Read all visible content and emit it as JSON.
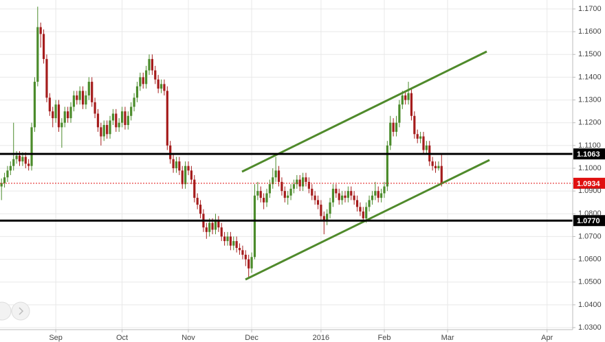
{
  "chart_data": {
    "type": "candlestick",
    "categories": [
      null,
      null,
      null,
      null,
      null,
      null,
      null,
      null,
      null,
      null,
      null,
      null,
      null,
      null,
      null,
      null,
      null,
      null,
      "Sep",
      null,
      null,
      null,
      null,
      null,
      null,
      null,
      null,
      null,
      null,
      null,
      null,
      null,
      null,
      null,
      null,
      null,
      null,
      null,
      null,
      null,
      "Oct",
      null,
      null,
      null,
      null,
      null,
      null,
      null,
      null,
      null,
      null,
      null,
      null,
      null,
      null,
      null,
      null,
      null,
      null,
      null,
      null,
      null,
      "Nov",
      null,
      null,
      null,
      null,
      null,
      null,
      null,
      null,
      null,
      null,
      null,
      null,
      null,
      null,
      null,
      null,
      null,
      null,
      null,
      null,
      "Dec",
      null,
      null,
      null,
      null,
      null,
      null,
      null,
      null,
      null,
      null,
      null,
      null,
      null,
      null,
      null,
      null,
      null,
      null,
      null,
      null,
      null,
      null,
      "2016",
      null,
      null,
      null,
      null,
      null,
      null,
      null,
      null,
      null,
      null,
      null,
      null,
      null,
      null,
      null,
      null,
      null,
      null,
      null,
      null,
      "Feb",
      null,
      null,
      null,
      null,
      null,
      null,
      null,
      null,
      null,
      null,
      null,
      null,
      null,
      null,
      null,
      null,
      null,
      null,
      null,
      null,
      "Mar",
      null,
      null,
      null,
      null,
      null,
      null,
      null,
      null,
      null,
      null,
      null,
      null,
      null,
      null,
      null,
      null,
      null,
      null,
      null,
      null,
      null,
      null,
      null,
      null,
      null,
      null,
      null,
      null,
      null,
      null,
      null,
      null,
      "Apr",
      null,
      null,
      null,
      null,
      null,
      null,
      null,
      null
    ],
    "open": [
      1.092,
      1.0935,
      1.096,
      1.099,
      1.101,
      1.104,
      1.1055,
      1.103,
      1.105,
      1.102,
      1.101,
      1.118,
      1.138,
      1.162,
      1.159,
      1.148,
      1.131,
      1.125,
      1.122,
      1.128,
      1.118,
      1.12,
      1.125,
      1.122,
      1.127,
      1.132,
      1.13,
      1.134,
      1.128,
      1.132,
      1.138,
      1.129,
      1.124,
      1.118,
      1.114,
      1.119,
      1.115,
      1.121,
      1.124,
      1.118,
      1.12,
      1.125,
      1.119,
      1.123,
      1.127,
      1.131,
      1.136,
      1.14,
      1.137,
      1.143,
      1.148,
      1.143,
      1.139,
      1.135,
      1.137,
      1.134,
      1.11,
      1.104,
      1.1,
      1.103,
      1.099,
      1.093,
      1.101,
      1.099,
      1.095,
      1.087,
      1.084,
      1.08,
      1.074,
      1.072,
      1.076,
      1.073,
      1.077,
      1.074,
      1.07,
      1.068,
      1.07,
      1.066,
      1.068,
      1.065,
      1.064,
      1.062,
      1.06,
      1.056,
      1.061,
      1.088,
      1.09,
      1.087,
      1.085,
      1.089,
      1.093,
      1.096,
      1.099,
      1.094,
      1.09,
      1.087,
      1.088,
      1.091,
      1.093,
      1.095,
      1.092,
      1.096,
      1.094,
      1.091,
      1.088,
      1.086,
      1.084,
      1.079,
      1.077,
      1.08,
      1.085,
      1.091,
      1.089,
      1.086,
      1.088,
      1.087,
      1.09,
      1.088,
      1.086,
      1.083,
      1.081,
      1.078,
      1.083,
      1.086,
      1.088,
      1.09,
      1.087,
      1.089,
      1.092,
      1.11,
      1.12,
      1.116,
      1.12,
      1.128,
      1.132,
      1.13,
      1.133,
      1.123,
      1.115,
      1.113,
      1.114,
      1.108,
      1.11,
      1.103,
      1.101,
      1.1,
      1.101,
      null,
      null,
      null,
      null,
      null,
      null,
      null,
      null,
      null,
      null,
      null,
      null,
      null,
      null,
      null,
      null,
      null,
      null,
      null,
      null,
      null,
      null,
      null,
      null,
      null,
      null,
      null,
      null,
      null,
      null,
      null,
      null,
      null,
      null,
      null,
      null,
      null,
      null,
      null,
      null,
      null,
      null,
      null
    ],
    "high": [
      1.0955,
      1.098,
      1.101,
      1.103,
      1.12,
      1.1075,
      1.1075,
      1.107,
      1.107,
      1.104,
      1.12,
      1.14,
      1.171,
      1.164,
      1.161,
      1.15,
      1.133,
      1.127,
      1.13,
      1.13,
      1.122,
      1.127,
      1.127,
      1.129,
      1.134,
      1.134,
      1.136,
      1.136,
      1.134,
      1.14,
      1.14,
      1.131,
      1.126,
      1.12,
      1.121,
      1.121,
      1.123,
      1.126,
      1.126,
      1.122,
      1.127,
      1.127,
      1.125,
      1.129,
      1.133,
      1.138,
      1.142,
      1.142,
      1.145,
      1.15,
      1.15,
      1.145,
      1.141,
      1.139,
      1.139,
      1.136,
      1.112,
      1.106,
      1.105,
      1.105,
      1.101,
      1.103,
      1.103,
      1.101,
      1.097,
      1.089,
      1.086,
      1.082,
      1.076,
      1.078,
      1.078,
      1.08,
      1.079,
      1.076,
      1.072,
      1.072,
      1.072,
      1.07,
      1.07,
      1.067,
      1.066,
      1.064,
      1.062,
      1.063,
      1.093,
      1.094,
      1.092,
      1.089,
      1.091,
      1.095,
      1.1,
      1.105,
      1.101,
      1.096,
      1.092,
      1.09,
      1.093,
      1.095,
      1.097,
      1.097,
      1.098,
      1.098,
      1.096,
      1.093,
      1.09,
      1.088,
      1.086,
      1.081,
      1.082,
      1.087,
      1.093,
      1.093,
      1.091,
      1.09,
      1.09,
      1.092,
      1.092,
      1.09,
      1.088,
      1.085,
      1.083,
      1.085,
      1.088,
      1.09,
      1.094,
      1.092,
      1.091,
      1.094,
      1.112,
      1.123,
      1.122,
      1.123,
      1.13,
      1.134,
      1.134,
      1.138,
      1.135,
      1.125,
      1.117,
      1.116,
      1.116,
      1.112,
      1.112,
      1.105,
      1.103,
      1.103,
      1.106,
      null,
      null,
      null,
      null,
      null,
      null,
      null,
      null,
      null,
      null,
      null,
      null,
      null,
      null,
      null,
      null,
      null,
      null,
      null,
      null,
      null,
      null,
      null,
      null,
      null,
      null,
      null,
      null,
      null,
      null,
      null,
      null,
      null,
      null,
      null,
      null,
      null,
      null,
      null,
      null,
      null,
      null,
      null
    ],
    "low": [
      1.086,
      1.0915,
      1.094,
      1.097,
      1.099,
      1.102,
      1.101,
      1.101,
      1.1,
      1.099,
      1.099,
      1.116,
      1.136,
      1.153,
      1.146,
      1.129,
      1.123,
      1.118,
      1.12,
      1.116,
      1.109,
      1.118,
      1.12,
      1.12,
      1.125,
      1.128,
      1.128,
      1.126,
      1.126,
      1.13,
      1.127,
      1.122,
      1.116,
      1.11,
      1.112,
      1.113,
      1.113,
      1.119,
      1.116,
      1.116,
      1.118,
      1.117,
      1.117,
      1.121,
      1.125,
      1.129,
      1.134,
      1.135,
      1.135,
      1.141,
      1.141,
      1.137,
      1.133,
      1.133,
      1.132,
      1.108,
      1.102,
      1.098,
      1.098,
      1.097,
      1.091,
      1.091,
      1.097,
      1.093,
      1.085,
      1.082,
      1.078,
      1.072,
      1.069,
      1.07,
      1.071,
      1.071,
      1.072,
      1.068,
      1.066,
      1.066,
      1.064,
      1.064,
      1.063,
      1.062,
      1.06,
      1.057,
      1.052,
      1.054,
      1.06,
      1.086,
      1.085,
      1.082,
      1.083,
      1.087,
      1.091,
      1.094,
      1.092,
      1.088,
      1.085,
      1.084,
      1.086,
      1.089,
      1.091,
      1.09,
      1.09,
      1.092,
      1.089,
      1.086,
      1.084,
      1.082,
      1.077,
      1.071,
      1.075,
      1.078,
      1.083,
      1.087,
      1.084,
      1.084,
      1.085,
      1.085,
      1.086,
      1.084,
      1.081,
      1.079,
      1.076,
      1.076,
      1.081,
      1.084,
      1.086,
      1.085,
      1.085,
      1.087,
      1.09,
      1.108,
      1.114,
      1.114,
      1.118,
      1.126,
      1.128,
      1.128,
      1.121,
      1.113,
      1.111,
      1.111,
      1.106,
      1.106,
      1.101,
      1.099,
      1.098,
      1.099,
      1.092,
      null,
      null,
      null,
      null,
      null,
      null,
      null,
      null,
      null,
      null,
      null,
      null,
      null,
      null,
      null,
      null,
      null,
      null,
      null,
      null,
      null,
      null,
      null,
      null,
      null,
      null,
      null,
      null,
      null,
      null,
      null,
      null,
      null,
      null,
      null,
      null,
      null,
      null,
      null,
      null,
      null,
      null,
      null
    ],
    "close": [
      1.0935,
      1.096,
      1.099,
      1.101,
      1.104,
      1.1055,
      1.103,
      1.105,
      1.102,
      1.101,
      1.118,
      1.138,
      1.162,
      1.159,
      1.148,
      1.131,
      1.125,
      1.122,
      1.128,
      1.118,
      1.12,
      1.125,
      1.122,
      1.127,
      1.132,
      1.13,
      1.134,
      1.128,
      1.132,
      1.138,
      1.129,
      1.124,
      1.118,
      1.114,
      1.119,
      1.115,
      1.121,
      1.124,
      1.118,
      1.12,
      1.125,
      1.119,
      1.123,
      1.127,
      1.131,
      1.136,
      1.14,
      1.137,
      1.143,
      1.148,
      1.143,
      1.139,
      1.135,
      1.137,
      1.134,
      1.11,
      1.104,
      1.1,
      1.103,
      1.099,
      1.093,
      1.101,
      1.099,
      1.095,
      1.087,
      1.084,
      1.08,
      1.074,
      1.072,
      1.076,
      1.073,
      1.077,
      1.074,
      1.07,
      1.068,
      1.07,
      1.066,
      1.068,
      1.065,
      1.064,
      1.062,
      1.06,
      1.056,
      1.061,
      1.088,
      1.09,
      1.087,
      1.085,
      1.089,
      1.093,
      1.096,
      1.099,
      1.094,
      1.09,
      1.087,
      1.088,
      1.091,
      1.093,
      1.095,
      1.092,
      1.096,
      1.094,
      1.091,
      1.088,
      1.086,
      1.084,
      1.079,
      1.077,
      1.08,
      1.085,
      1.091,
      1.089,
      1.086,
      1.088,
      1.087,
      1.09,
      1.088,
      1.086,
      1.083,
      1.081,
      1.078,
      1.083,
      1.086,
      1.088,
      1.09,
      1.087,
      1.089,
      1.092,
      1.11,
      1.12,
      1.116,
      1.12,
      1.128,
      1.132,
      1.13,
      1.133,
      1.123,
      1.115,
      1.113,
      1.114,
      1.108,
      1.11,
      1.103,
      1.101,
      1.1,
      1.101,
      1.0934,
      null,
      null,
      null,
      null,
      null,
      null,
      null,
      null,
      null,
      null,
      null,
      null,
      null,
      null,
      null,
      null,
      null,
      null,
      null,
      null,
      null,
      null,
      null,
      null,
      null,
      null,
      null,
      null,
      null,
      null,
      null,
      null,
      null,
      null,
      null,
      null,
      null,
      null,
      null,
      null,
      null,
      null,
      null
    ],
    "up_color": "#4b8b2b",
    "down_color": "#a51c1c",
    "ylim": [
      1.03,
      1.17
    ],
    "yticks": [
      {
        "value": 1.03,
        "label": "1.0300"
      },
      {
        "value": 1.04,
        "label": "1.0400"
      },
      {
        "value": 1.05,
        "label": "1.0500"
      },
      {
        "value": 1.06,
        "label": "1.0600"
      },
      {
        "value": 1.07,
        "label": "1.0700"
      },
      {
        "value": 1.08,
        "label": "1.0800"
      },
      {
        "value": 1.09,
        "label": "1.0900"
      },
      {
        "value": 1.1,
        "label": "1.1000"
      },
      {
        "value": 1.11,
        "label": "1.1100"
      },
      {
        "value": 1.12,
        "label": "1.1200"
      },
      {
        "value": 1.13,
        "label": "1.1300"
      },
      {
        "value": 1.14,
        "label": "1.1400"
      },
      {
        "value": 1.15,
        "label": "1.1500"
      },
      {
        "value": 1.16,
        "label": "1.1600"
      },
      {
        "value": 1.17,
        "label": "1.1700"
      }
    ],
    "grid": true,
    "price_lines": [
      {
        "value": 1.1063,
        "color": "#000000",
        "style": "solid"
      },
      {
        "value": 1.077,
        "label": "1.0770",
        "color": "#000000",
        "style": "solid"
      },
      {
        "value": 1.0934,
        "color": "#e01010",
        "style": "dashed"
      }
    ]
  }
}
